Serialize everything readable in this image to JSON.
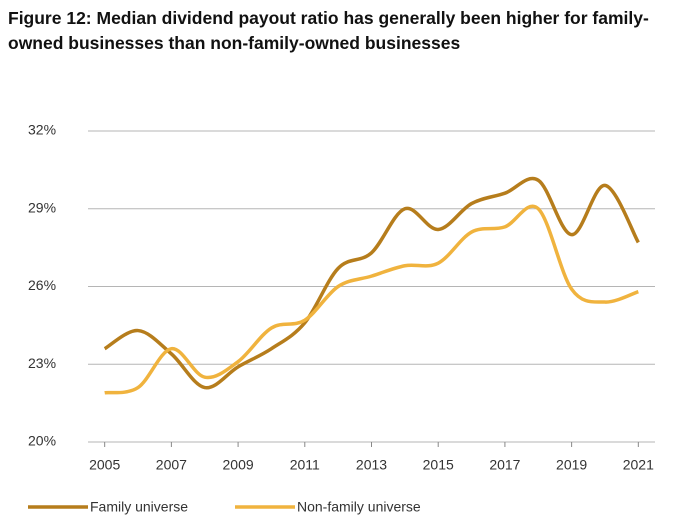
{
  "chart_data": {
    "type": "line",
    "title": "Figure 12: Median dividend payout ratio has generally been higher for family-owned businesses than non-family-owned businesses",
    "x": [
      2005,
      2006,
      2007,
      2008,
      2009,
      2010,
      2011,
      2012,
      2013,
      2014,
      2015,
      2016,
      2017,
      2018,
      2019,
      2020,
      2021
    ],
    "series": [
      {
        "name": "Family universe",
        "color": "#b67d1c",
        "values": [
          23.6,
          24.3,
          23.4,
          22.1,
          22.9,
          23.6,
          24.6,
          26.7,
          27.3,
          29.0,
          28.2,
          29.2,
          29.6,
          30.1,
          28.0,
          29.9,
          27.7
        ]
      },
      {
        "name": "Non-family universe",
        "color": "#f0b33e",
        "values": [
          21.9,
          22.1,
          23.6,
          22.5,
          23.1,
          24.4,
          24.7,
          26.0,
          26.4,
          26.8,
          26.9,
          28.1,
          28.3,
          29.0,
          25.9,
          25.4,
          25.8
        ]
      }
    ],
    "xlim": [
      2004.5,
      2021.5
    ],
    "xticks": [
      2005,
      2007,
      2009,
      2011,
      2013,
      2015,
      2017,
      2019,
      2021
    ],
    "ylim": [
      20,
      32
    ],
    "yticks": [
      {
        "value": 20,
        "label": "20%"
      },
      {
        "value": 23,
        "label": "23%"
      },
      {
        "value": 26,
        "label": "26%"
      },
      {
        "value": 29,
        "label": "29%"
      },
      {
        "value": 32,
        "label": "32%"
      }
    ],
    "grid": true,
    "legend": "bottom"
  }
}
